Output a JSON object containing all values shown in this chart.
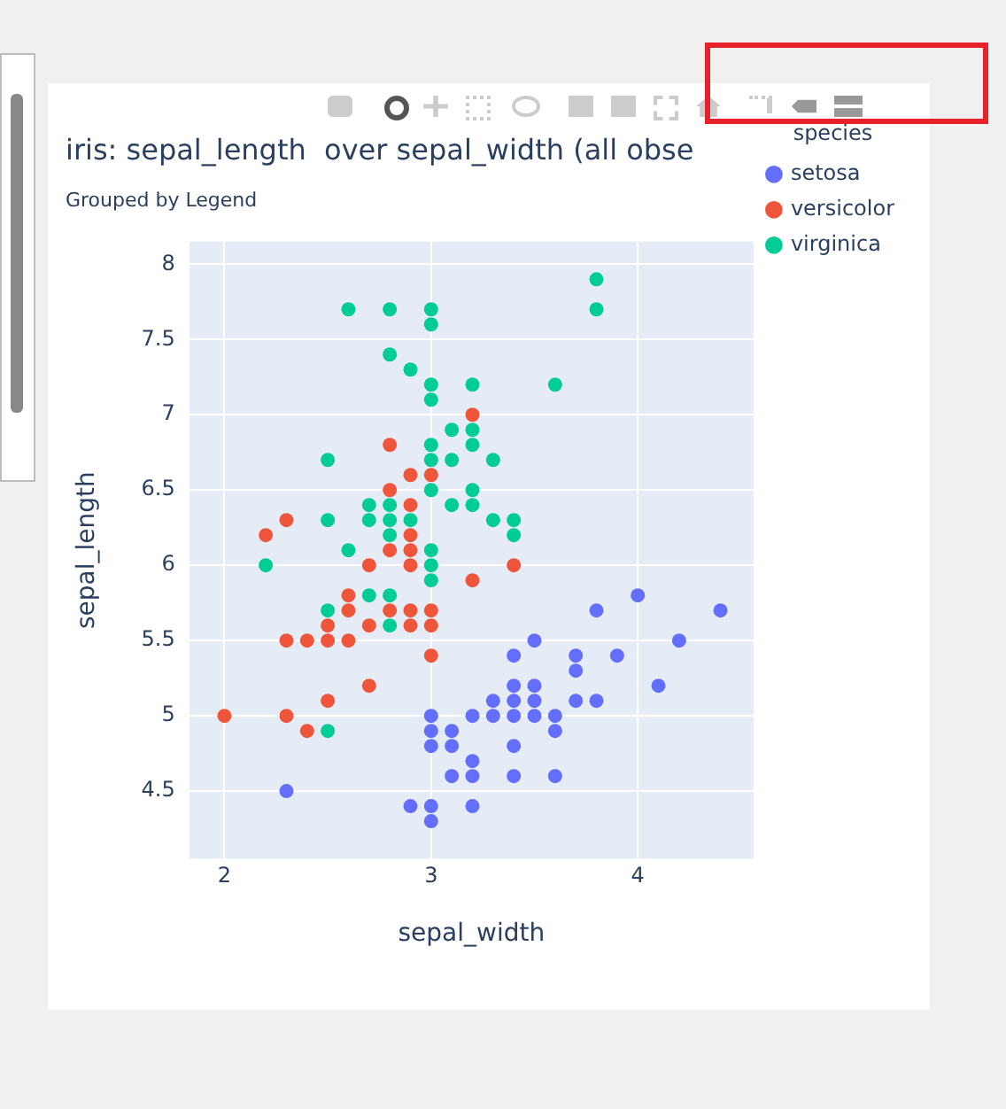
{
  "chart_data": {
    "type": "scatter",
    "title": "iris: sepal_length  over sepal_width (all obse",
    "subtitle": "Grouped by Legend",
    "xlabel": "sepal_width",
    "ylabel": "sepal_length",
    "legend_title": "species",
    "legend": "top right",
    "grid": true,
    "marker": "circle",
    "xlim": [
      1.83,
      4.56
    ],
    "xticks": [
      2,
      3,
      4
    ],
    "ylim": [
      4.05,
      8.15
    ],
    "yticks": [
      4.5,
      5,
      5.5,
      6,
      6.5,
      7,
      7.5,
      8
    ],
    "series": [
      {
        "name": "setosa",
        "color": "#636efa",
        "x": [
          3.5,
          3.0,
          3.2,
          3.1,
          3.6,
          3.9,
          3.4,
          3.4,
          2.9,
          3.1,
          3.7,
          3.4,
          3.0,
          3.0,
          4.0,
          4.4,
          3.8,
          3.8,
          3.4,
          3.7,
          3.6,
          3.3,
          3.0,
          3.5,
          3.4,
          3.1,
          4.1,
          4.2,
          3.2,
          3.5,
          3.6,
          3.0,
          3.4,
          3.5,
          2.3,
          3.2,
          3.2,
          3.7,
          3.3
        ],
        "values": [
          5.1,
          4.9,
          4.7,
          4.6,
          5.0,
          5.4,
          4.6,
          5.0,
          4.4,
          4.9,
          5.4,
          4.8,
          4.8,
          4.3,
          5.8,
          5.7,
          5.7,
          5.1,
          5.4,
          5.1,
          4.6,
          5.1,
          5.0,
          5.2,
          5.2,
          4.8,
          5.2,
          5.5,
          5.0,
          5.5,
          4.9,
          4.4,
          5.1,
          5.0,
          4.5,
          4.4,
          4.6,
          5.3,
          5.0
        ]
      },
      {
        "name": "versicolor",
        "color": "#ef553b",
        "x": [
          3.2,
          2.3,
          2.8,
          2.8,
          2.4,
          2.9,
          2.7,
          2.0,
          2.9,
          2.9,
          3.0,
          2.2,
          2.5,
          3.2,
          2.8,
          2.9,
          3.0,
          2.8,
          2.9,
          2.6,
          2.4,
          2.7,
          3.0,
          3.4,
          2.3,
          2.5,
          2.6,
          2.6,
          2.3,
          2.7,
          3.0,
          2.9,
          2.9,
          2.5
        ],
        "values": [
          7.0,
          5.5,
          6.5,
          5.7,
          4.9,
          6.6,
          5.2,
          5.0,
          6.1,
          5.6,
          5.6,
          6.2,
          5.6,
          5.9,
          6.1,
          6.4,
          6.6,
          6.8,
          6.0,
          5.7,
          5.5,
          6.0,
          5.4,
          6.0,
          6.3,
          5.5,
          5.5,
          5.8,
          5.0,
          5.6,
          5.7,
          5.7,
          6.2,
          5.1
        ]
      },
      {
        "name": "virginica",
        "color": "#00cc96",
        "x": [
          3.3,
          2.7,
          3.0,
          2.9,
          3.0,
          3.0,
          2.5,
          2.9,
          2.5,
          3.6,
          3.2,
          2.7,
          3.0,
          2.5,
          2.8,
          3.2,
          3.8,
          2.6,
          2.2,
          3.2,
          2.8,
          2.8,
          2.7,
          3.3,
          3.2,
          2.8,
          3.0,
          2.8,
          3.0,
          2.8,
          3.8,
          2.8,
          2.6,
          3.0,
          3.4,
          3.1,
          3.0,
          3.1,
          3.1,
          3.2,
          3.0,
          2.5,
          3.4,
          3.0
        ],
        "values": [
          6.3,
          5.8,
          7.1,
          6.3,
          6.5,
          7.6,
          4.9,
          7.3,
          6.7,
          7.2,
          6.5,
          6.4,
          6.8,
          5.7,
          5.8,
          6.4,
          7.7,
          7.7,
          6.0,
          6.9,
          5.6,
          7.7,
          6.3,
          6.7,
          7.2,
          6.2,
          6.1,
          6.4,
          7.2,
          7.4,
          7.9,
          6.3,
          6.1,
          7.7,
          6.3,
          6.4,
          6.0,
          6.9,
          6.7,
          6.8,
          6.7,
          6.3,
          6.2,
          5.9
        ]
      }
    ]
  }
}
